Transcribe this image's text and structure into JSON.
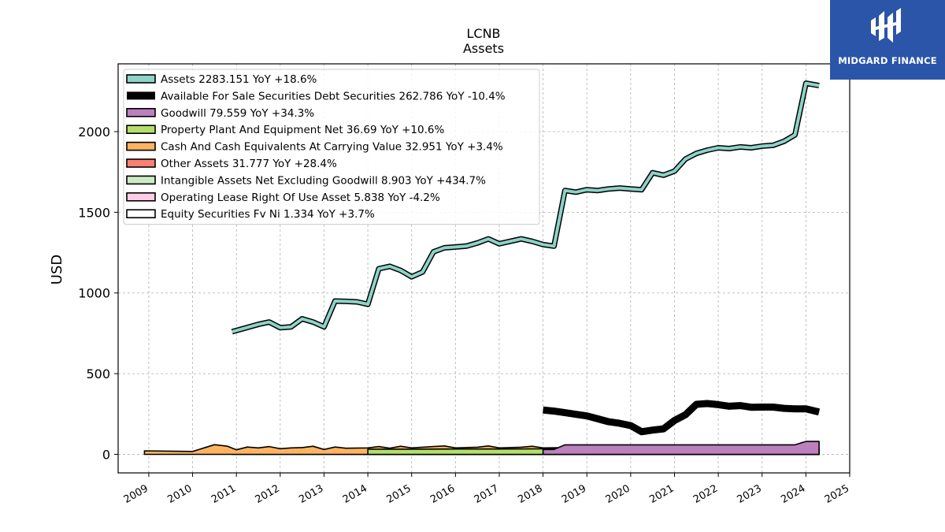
{
  "chart_data": {
    "type": "area",
    "title": "LCNB",
    "subtitle": "Assets",
    "ylabel": "USD",
    "xlim": [
      2008.3,
      2025.0
    ],
    "ylim": [
      -115,
      2420
    ],
    "x_ticks": [
      2009,
      2010,
      2011,
      2012,
      2013,
      2014,
      2015,
      2016,
      2017,
      2018,
      2019,
      2020,
      2021,
      2022,
      2023,
      2024,
      2025
    ],
    "y_ticks": [
      0,
      500,
      1000,
      1500,
      2000
    ],
    "grid": true,
    "legend_position": "top-left",
    "series": [
      {
        "name": "Assets",
        "legend": "Assets  2283.151 YoY +18.6%",
        "color": "#8dd3c7",
        "style": "line",
        "x": [
          2010.9,
          2011.5,
          2011.75,
          2012.0,
          2012.25,
          2012.5,
          2012.75,
          2013.0,
          2013.25,
          2013.5,
          2013.75,
          2014.0,
          2014.25,
          2014.5,
          2014.75,
          2015.0,
          2015.25,
          2015.5,
          2015.75,
          2016.0,
          2016.25,
          2016.5,
          2016.75,
          2017.0,
          2017.25,
          2017.5,
          2017.75,
          2018.0,
          2018.25,
          2018.5,
          2018.75,
          2019.0,
          2019.25,
          2019.5,
          2019.75,
          2020.0,
          2020.25,
          2020.5,
          2020.75,
          2021.0,
          2021.25,
          2021.5,
          2021.75,
          2022.0,
          2022.25,
          2022.5,
          2022.75,
          2023.0,
          2023.25,
          2023.5,
          2023.75,
          2024.0,
          2024.3
        ],
        "y": [
          760,
          805,
          820,
          785,
          790,
          840,
          820,
          790,
          950,
          948,
          945,
          930,
          1150,
          1165,
          1140,
          1100,
          1130,
          1255,
          1280,
          1285,
          1290,
          1310,
          1335,
          1305,
          1320,
          1335,
          1320,
          1300,
          1290,
          1635,
          1625,
          1640,
          1635,
          1645,
          1650,
          1645,
          1640,
          1745,
          1730,
          1755,
          1830,
          1865,
          1885,
          1900,
          1895,
          1905,
          1900,
          1910,
          1915,
          1940,
          1980,
          2300,
          2285
        ]
      },
      {
        "name": "Available For Sale Securities Debt Securities",
        "legend": "Available For Sale Securities Debt Securities  262.786 YoY -10.4%",
        "color": "#000000",
        "style": "line",
        "x": [
          2018.0,
          2018.25,
          2018.5,
          2018.75,
          2019.0,
          2019.25,
          2019.5,
          2019.75,
          2020.0,
          2020.25,
          2020.5,
          2020.75,
          2021.0,
          2021.25,
          2021.5,
          2021.75,
          2022.0,
          2022.25,
          2022.5,
          2022.75,
          2023.0,
          2023.25,
          2023.5,
          2023.75,
          2024.0,
          2024.3
        ],
        "y": [
          275,
          268,
          258,
          248,
          238,
          220,
          202,
          192,
          178,
          140,
          150,
          158,
          210,
          245,
          310,
          315,
          308,
          298,
          302,
          292,
          293,
          293,
          285,
          282,
          282,
          262
        ]
      },
      {
        "name": "Goodwill",
        "legend": "Goodwill  79.559 YoY +34.3%",
        "color": "#bc80bd",
        "style": "area",
        "x": [
          2018.0,
          2018.25,
          2018.5,
          2018.75,
          2023.75,
          2024.0,
          2024.3
        ],
        "y": [
          30,
          30,
          59,
          59,
          59,
          80,
          80
        ]
      },
      {
        "name": "Property Plant And Equipment Net",
        "legend": "Property Plant And Equipment Net  36.69 YoY +10.6%",
        "color": "#b3de69",
        "style": "area",
        "x": [
          2014.0,
          2015.0,
          2016.0,
          2017.0,
          2018.0,
          2019.0,
          2020.0,
          2021.0,
          2022.0,
          2023.0,
          2024.0,
          2024.3
        ],
        "y": [
          32,
          32,
          33,
          33,
          34,
          35,
          35,
          36,
          34,
          34,
          34,
          37
        ]
      },
      {
        "name": "Cash And Cash Equivalents At Carrying Value",
        "legend": "Cash And Cash Equivalents At Carrying Value  32.951 YoY +3.4%",
        "color": "#fdb462",
        "style": "area",
        "x": [
          2008.9,
          2010.0,
          2010.5,
          2010.8,
          2011.0,
          2011.25,
          2011.5,
          2011.75,
          2012.0,
          2012.25,
          2012.5,
          2012.75,
          2013.0,
          2013.25,
          2013.5,
          2014.0,
          2014.25,
          2014.5,
          2014.75,
          2015.0,
          2015.5,
          2015.75,
          2016.0,
          2016.5,
          2016.75,
          2017.0,
          2017.5,
          2017.75,
          2018.0,
          2018.5,
          2019.0,
          2019.5,
          2020.0,
          2020.5,
          2020.75,
          2021.0,
          2021.25,
          2021.5,
          2022.0,
          2022.5,
          2023.0,
          2023.5,
          2024.0,
          2024.3
        ],
        "y": [
          22,
          18,
          60,
          50,
          28,
          45,
          40,
          48,
          35,
          40,
          42,
          50,
          30,
          45,
          38,
          40,
          48,
          38,
          50,
          40,
          48,
          52,
          40,
          44,
          52,
          40,
          44,
          50,
          40,
          42,
          45,
          42,
          40,
          55,
          42,
          45,
          55,
          42,
          40,
          44,
          42,
          45,
          30,
          33
        ]
      },
      {
        "name": "Other Assets",
        "legend": "Other Assets  31.777 YoY +28.4%",
        "color": "#fb8072",
        "style": "area",
        "x": [
          2010.9,
          2013.0,
          2013.25,
          2014.0,
          2015.0,
          2016.0,
          2017.0,
          2018.0,
          2019.0,
          2020.0,
          2021.0,
          2022.0,
          2023.0,
          2024.0,
          2024.3
        ],
        "y": [
          22,
          22,
          28,
          28,
          26,
          28,
          27,
          26,
          27,
          28,
          30,
          28,
          26,
          25,
          32
        ]
      },
      {
        "name": "Intangible Assets Net Excluding Goodwill",
        "legend": "Intangible Assets Net Excluding Goodwill  8.903 YoY +434.7%",
        "color": "#ccebc5",
        "style": "area",
        "x": [
          2013.9,
          2015.0,
          2016.0,
          2017.0,
          2017.9,
          2018.5,
          2019.0,
          2020.0,
          2021.0,
          2022.0,
          2023.0,
          2024.0,
          2024.3
        ],
        "y": [
          14,
          12,
          13,
          12,
          12,
          14,
          12,
          11,
          9,
          8,
          5,
          2,
          9
        ]
      },
      {
        "name": "Operating Lease Right Of Use Asset",
        "legend": "Operating Lease Right Of Use Asset  5.838 YoY -4.2%",
        "color": "#fccde5",
        "style": "area",
        "x": [
          2019.0,
          2020.0,
          2021.0,
          2022.0,
          2023.0,
          2024.0,
          2024.3
        ],
        "y": [
          6,
          6,
          6,
          6,
          6,
          6,
          6
        ]
      },
      {
        "name": "Equity Securities Fv Ni",
        "legend": "Equity Securities Fv Ni  1.334 YoY +3.7%",
        "color": "#ffffff",
        "style": "area",
        "x": [
          2017.9,
          2024.3
        ],
        "y": [
          1.3,
          1.3
        ]
      }
    ]
  },
  "branding": {
    "name": "MIDGARD FINANCE",
    "logo_icon": "midgard-logo-icon",
    "background": "#2a55a8"
  }
}
